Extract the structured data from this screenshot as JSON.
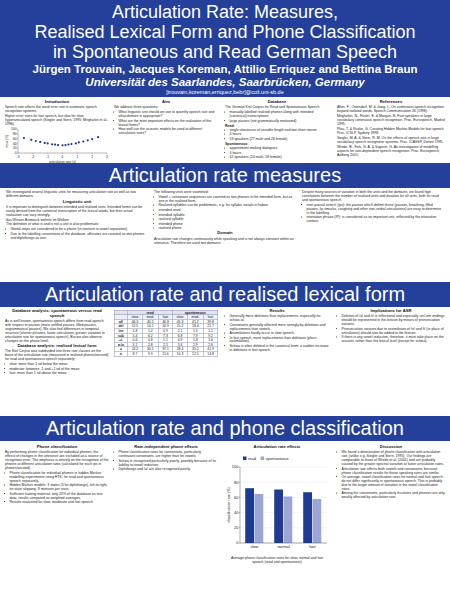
{
  "header": {
    "title": [
      "Articulation Rate: Measures,",
      "Realised Lexical Form and Phone Classification",
      "in Spontaneous and Read German Speech"
    ],
    "authors": "Jürgen Trouvain, Jacques Koreman, Attilio Erriquez and Bettina Braun",
    "affiliation": "Universität des Saarlandes, Saarbrücken, Germany",
    "email": "[trouvain,koreman,erriquez,bebr]@coli.uni-sb.de"
  },
  "panels": [
    {
      "columns": [
        {
          "blocks": [
            {
              "heading": "Introduction",
              "text": [
                "Speech rate affects the word error rate in automatic speech recognition systems.",
                "Higher error rates for fast speech, but also for slow, hyperarticulated speech (Siegler and Stern, 1995; Mirghafori et al., 1996)."
              ]
            }
          ]
        },
        {
          "blocks": [
            {
              "heading": "Aim",
              "text": [
                "We address three questions:"
              ],
              "bullets": [
                "What linguistic unit should we use to quantify speech rate and what domain is appropriate?",
                "What are the most important effects on the realisation of the lexical forms?",
                "How well can the acoustic models be used at different articulation rates?"
              ]
            }
          ]
        },
        {
          "blocks": [
            {
              "heading": "Database",
              "text": [
                "The German Kiel Corpus for Read and Spontaneous Speech"
              ],
              "bullets": [
                "manually labelled realised phones along with intended (canonical) transcriptions",
                "large pauses (not grammatically motivated)"
              ]
            },
            {
              "subheading": "Read:",
              "bullets": [
                "single utterances of variable length and two short stories",
                "4 hours",
                "53 speakers (27 male and 26 female)"
              ]
            },
            {
              "subheading": "Spontaneous:",
              "bullets": [
                "appointment-making dialogues",
                "4 hours",
                "42 speakers (24 male, 18 female)"
              ]
            }
          ]
        },
        {
          "blocks": [
            {
              "heading": "References",
              "text": [
                "Allen, F., Ostendorf, M. & Jiang, L. On continuous speech recognition beyond isolated words. Speech Communication 26 (1998).",
                "Mirghafori, N., Fosler, E. & Morgan, N. Fast speakers in large vocabulary continuous speech recognition. Proc. Eurospeech, Madrid 1995.",
                "Pfau, T. & Ruske, G. Creating Hidden Markov Models for fast speech. Proc. ICSLP, Sydney 1998.",
                "Siegler, M. A. & Stern, R. M. On the effects of speech rate in large vocabulary speech recognition systems. Proc. ICASSP, Detroit 1995.",
                "Wrede, B., Fink, G. A. & Sagerer, G. An investigation of modelling aspects for rate-dependent speech recognition. Proc. Eurospeech, Aalborg 2001."
              ]
            }
          ]
        }
      ]
    },
    {
      "banner": "Articulation rate measures",
      "columns": [
        {
          "blocks": [
            {
              "text": [
                "We investigated several linguistic units for measuring articulation rate as well as two different domains."
              ]
            },
            {
              "heading": "Linguistic unit",
              "text": [
                "It is important to distinguish between intended and realised units. Intended forms can be easily derived from the canonical transcription of the lexical words, but their actual realisation can vary strongly.",
                "das Wissen Bismarck wohnte im Wolken",
                "The definition of what is and is not a unit is also problematic:"
              ],
              "bullets": [
                "Glottal stops are considered to be a phone (in contrast to vowel separation).",
                "Due to the labelling conventions of the database, affricates are counted as two phones and diphthongs as one."
              ]
            }
          ]
        },
        {
          "blocks": [
            {
              "bullets": [
                "Vowel + consonant sequences are counted as two phones in the intended form, but as one in the realised form.",
                "Realised syllables can be problematic, e.g. for syllabic nasals in haben."
              ],
              "text": [
                "The following units were examined:"
              ]
            },
            {
              "bullets": [
                "intended word",
                "intended syllable",
                "realised syllable",
                "intended phone",
                "realised phone"
              ]
            },
            {
              "heading": "Domain",
              "text": [
                "Articulation rate changes continuously while speaking and is not always constant within an utterance. Therefore we used two domains:"
              ]
            }
          ]
        },
        {
          "blocks": [
            {
              "bullets": [
                "inter-pausal stretch (ips): the pauses which delimit these (pauses, breathing, filled pauses, lip smacks, coughing and other non-verbal articulations) are easy to determine in the labelling.",
                "intonation phrase (IP): is considered as an important unit, reflected by the intonation contour."
              ],
              "text": [
                "Despite many sources of variation in both the units and the domains, we found high correlations between the number of realised units and duration for all units, both for read and spontaneous speech."
              ]
            }
          ]
        }
      ]
    },
    {
      "banner": "Articulation rate and realised lexical form",
      "columns": [
        {
          "blocks": [
            {
              "heading": "Database analysis: spontaneous versus read speech",
              "text": [
                "As is well known, spontaneous speech differs from read speech with respect to pauses (more unfilled pauses, filled pauses, ungrammatical pauses). We also find differences in temporal structure (shorter phrases, faster articulation, greater variation in articulation rate for spontaneous speech). But we also observe changes on the phone level."
              ]
            },
            {
              "heading": "Database analysis: realised lexical form",
              "text": [
                "The Kiel Corpus was subdivided into three rate classes on the basis of the articulation rate (measured in realised phones/second) for read and spontaneous speech separately:"
              ],
              "bullets": [
                "slow: more than 1 sd below the mean",
                "moderate: between -1 and +1 sd of the mean",
                "fast: more than 1 sd above the mean"
              ]
            }
          ]
        },
        {
          "blocks": [
            {
              "heading": "Results",
              "bullets": [
                "Generally more deletions than replacements, especially for schwa /ə/.",
                "Consonants generally affected more strongly by deletions and replacements than vowels.",
                "Assimilations hardly occur in slow speech.",
                "In fast speech, more replacements than deletions (place assimilation).",
                "Schwa is often deleted in the canonical form; a sudden increase in deletions in fast speech."
              ]
            }
          ]
        },
        {
          "blocks": [
            {
              "heading": "Implications for ASR",
              "bullets": [
                "Deletion of /ə/ and /t/ in inflectional and especially -en/-em endings should be represented in the lexicon by means of pronunciation variants.",
                "Pronunciation variants due to assimilation of /n/ and /t/ (in place of articulation) should also be added to the lexicon.",
                "If there is any vowel reduction, therefore, it must take place on the acoustic rather than the lexical level (except for schwa)."
              ]
            }
          ]
        }
      ],
      "table": {
        "groups": [
          "read",
          "spontaneous"
        ],
        "columns": [
          "",
          "slow",
          "mod.",
          "fast",
          "slow",
          "mod.",
          "fast"
        ],
        "rows": [
          [
            "all",
            46.3,
            40.5,
            46.8,
            45.3,
            41.2,
            39.8
          ],
          [
            "del",
            12.5,
            14.1,
            16.9,
            15.2,
            18.4,
            21.7
          ],
          [
            "ins",
            1.8,
            1.2,
            0.9,
            2.1,
            1.5,
            1.1
          ],
          [
            "sub",
            5.4,
            6.2,
            7.3,
            6.8,
            7.9,
            9.2
          ],
          [
            "+/-",
            0.6,
            0.8,
            1.1,
            0.9,
            1.3,
            1.6
          ],
          [
            "a:/a",
            3.1,
            2.8,
            2.5,
            3.4,
            2.9,
            2.6
          ],
          [
            "ə",
            24.2,
            30.5,
            37.1,
            28.4,
            35.2,
            41.9
          ],
          [
            "n",
            8.7,
            9.9,
            11.6,
            10.3,
            12.5,
            14.8
          ]
        ]
      }
    },
    {
      "banner": "Articulation rate and phone classification",
      "columns": [
        {
          "blocks": [
            {
              "heading": "Phone classification",
              "text": [
                "By performing phone classification for individual phones, the effects of changes in the utterance are excluded as a source of recognition error. The emphasis is entirely on the recognition of the phones at different articulation rates (calculated for each ips in phones/second)."
              ],
              "bullets": [
                "Phone classification for individual phones in hidden Markov modelling experiments using HTK, for read and spontaneous speech separately.",
                "Hidden Markov models: 3 states (5 for diphthongs), left-to-right, no state skipping, 8 mixtures per state.",
                "Sufficient training material: only 20% of the database as test data, results computed as weighted averages.",
                "Results evaluated for slow, moderate and fast speech."
              ]
            }
          ]
        },
        {
          "blocks": [
            {
              "heading": "Rate-independent phone effects",
              "bullets": [
                "Phone classification rates for consonants, particularly continuant consonants, are higher than for vowels.",
                "Schwa is recognised particularly poorly, possibly because of its liability to vowel reduction.",
                "Diphthongs and /a/ are also recognised poorly."
              ]
            }
          ]
        },
        {
          "blocks": [
            {
              "heading": "Discussion",
              "bullets": [
                "We found a deterioration of phone classification with articulation rate (unlike e.g. Siegler and Stern, 1995). Our findings are comparable to those of Wrede et al. (2001) and are probably caused by the greater spectral variation at faster articulation rates.",
                "Articulation rate affects both vowels and consonants, because phone classification results for these speaking rates are similar.",
                "On average, vowel classification rates for normal and fast speech do not differ significantly in spontaneous speech. This is probably due to the larger amount of variation in the vowel classification rates.",
                "Among the consonants, particularly fricatives and plosives are only weakly affected by articulation rate."
              ]
            }
          ]
        }
      ]
    }
  ],
  "chart_data": [
    {
      "type": "scatter",
      "xlabel": "articulation rate (z)",
      "ylabel": "error (%)",
      "x": [
        -2.6,
        -2.1,
        -1.8,
        -1.5,
        -1.2,
        -1.0,
        -0.7,
        -0.5,
        -0.3,
        0,
        0.2,
        0.4,
        0.6,
        0.9,
        1.1,
        1.4,
        1.7,
        2.0,
        2.4
      ],
      "values": [
        62,
        55,
        50,
        46,
        42,
        40,
        36,
        35,
        33,
        32,
        33,
        35,
        37,
        40,
        44,
        48,
        53,
        58,
        66
      ],
      "xlim": [
        -3,
        3
      ],
      "ylim": [
        0,
        100
      ],
      "xticks": [
        -3,
        -2,
        -1,
        0,
        1,
        2,
        3
      ],
      "yticks": [
        0,
        20,
        40,
        60,
        80,
        100
      ],
      "color": "#1f3a93",
      "marker": "circle",
      "grid": false
    },
    {
      "type": "bar",
      "title": "Articulation rate effects",
      "caption": "Average phone classification rates for slow, normal and fast speech (read and spontaneous)",
      "ylabel": "classification rate (%)",
      "categories": [
        "slow",
        "normal",
        "fast"
      ],
      "series": [
        {
          "name": "read",
          "color": "#1f3a93",
          "values": [
            72.1,
            70.4,
            66.8
          ]
        },
        {
          "name": "spontaneous",
          "color": "#9aa7d6",
          "values": [
            64.5,
            61.2,
            57.9
          ]
        }
      ],
      "ylim": [
        0,
        100
      ],
      "yticks": [
        0,
        20,
        40,
        60,
        80,
        100
      ],
      "grid": true,
      "legend": "top"
    }
  ]
}
